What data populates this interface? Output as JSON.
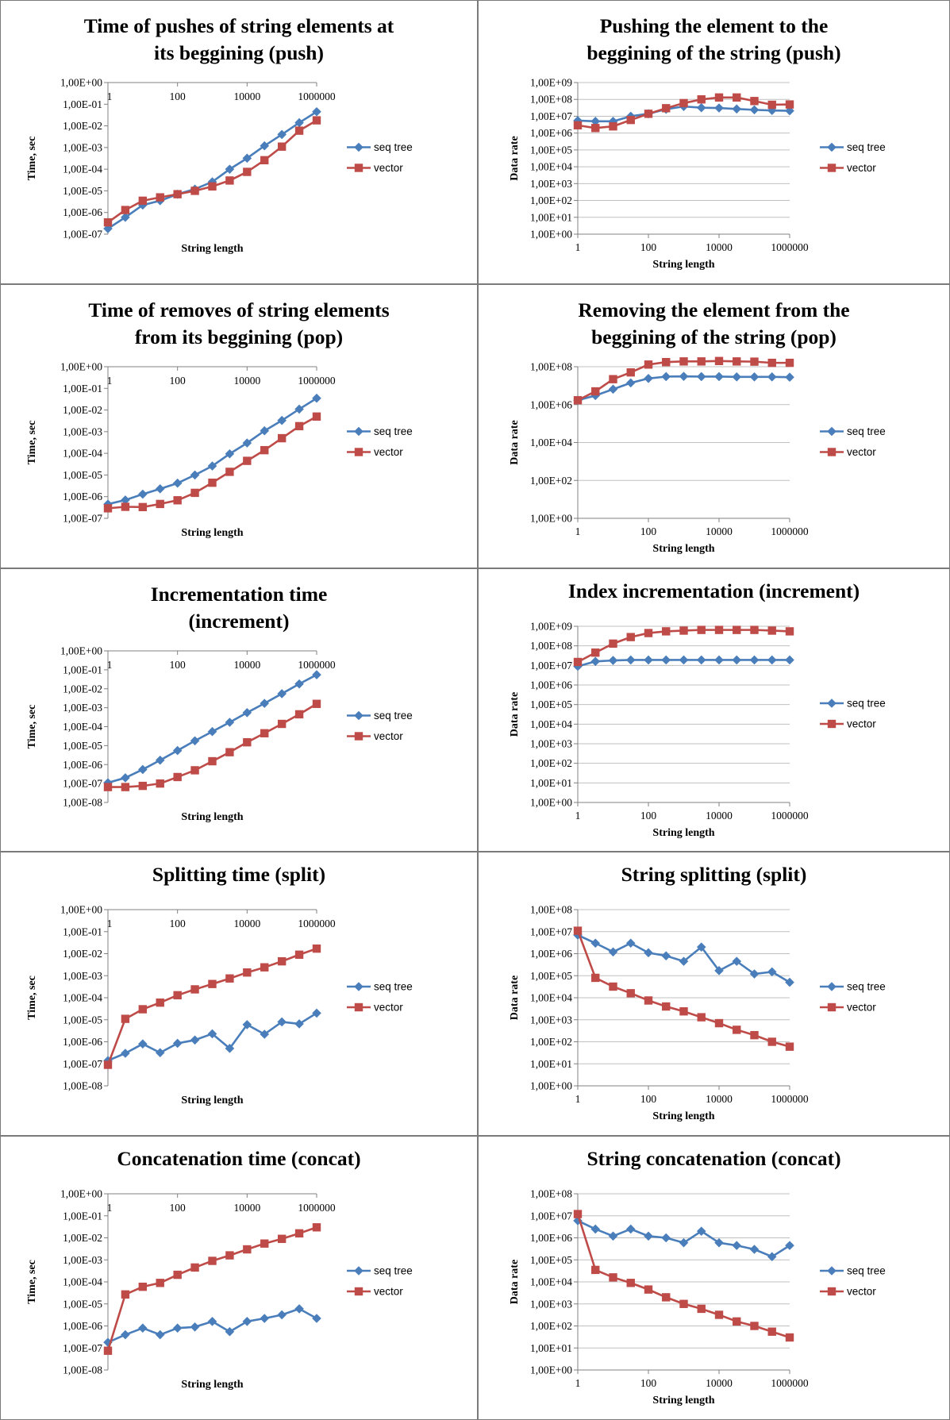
{
  "chart_data": [
    {
      "id": "push-time",
      "type": "line",
      "title": [
        "Time of pushes of string elements at",
        "its beggining (push)"
      ],
      "xlabel": "String length",
      "ylabel": "Time, sec",
      "x_scale": "log",
      "y_scale": "log",
      "x_range": [
        1,
        1000000
      ],
      "x_ticks": [
        "1",
        "100",
        "10000",
        "1000000"
      ],
      "x_tick_pos": "top",
      "y_range_exp": [
        -7,
        0
      ],
      "y_ticks": [
        "1,00E-07",
        "1,00E-06",
        "1,00E-05",
        "1,00E-04",
        "1,00E-03",
        "1,00E-02",
        "1,00E-01",
        "1,00E+00"
      ],
      "grid": false,
      "legend": "right",
      "x": [
        1,
        3.16,
        10,
        31.6,
        100,
        316,
        1000,
        3160,
        10000,
        31600,
        100000,
        316000,
        1000000
      ],
      "series": [
        {
          "name": "seq tree",
          "color": "#4a7ebb",
          "marker": "diamond",
          "values": [
            1.8e-07,
            6e-07,
            2.2e-06,
            3.5e-06,
            7e-06,
            1.2e-05,
            2.6e-05,
            0.0001,
            0.00032,
            0.0012,
            0.004,
            0.014,
            0.045
          ]
        },
        {
          "name": "vector",
          "color": "#be4b48",
          "marker": "square",
          "values": [
            3.5e-07,
            1.3e-06,
            3.5e-06,
            5e-06,
            7e-06,
            1e-05,
            1.6e-05,
            3e-05,
            7.5e-05,
            0.00026,
            0.0011,
            0.006,
            0.018
          ]
        }
      ]
    },
    {
      "id": "push-rate",
      "type": "line",
      "title": [
        "Pushing the element to the",
        "beggining of the string (push)"
      ],
      "xlabel": "String length",
      "ylabel": "Data rate",
      "x_scale": "log",
      "y_scale": "log",
      "x_range": [
        1,
        1000000
      ],
      "x_ticks": [
        "1",
        "100",
        "10000",
        "1000000"
      ],
      "x_tick_pos": "bottom",
      "y_range_exp": [
        0,
        9
      ],
      "y_ticks": [
        "1,00E+00",
        "1,00E+01",
        "1,00E+02",
        "1,00E+03",
        "1,00E+04",
        "1,00E+05",
        "1,00E+06",
        "1,00E+07",
        "1,00E+08",
        "1,00E+09"
      ],
      "grid": true,
      "legend": "right",
      "x": [
        1,
        3.16,
        10,
        31.6,
        100,
        316,
        1000,
        3160,
        10000,
        31600,
        100000,
        316000,
        1000000
      ],
      "series": [
        {
          "name": "seq tree",
          "color": "#4a7ebb",
          "marker": "diamond",
          "values": [
            5500000.0,
            5000000.0,
            5000000.0,
            10000000.0,
            14000000.0,
            26000000.0,
            38000000.0,
            32000000.0,
            31000000.0,
            27000000.0,
            24000000.0,
            22000000.0,
            21000000.0
          ]
        },
        {
          "name": "vector",
          "color": "#be4b48",
          "marker": "square",
          "values": [
            2900000.0,
            2000000.0,
            2500000.0,
            6000000.0,
            14000000.0,
            30000000.0,
            60000000.0,
            100000000.0,
            130000000.0,
            130000000.0,
            80000000.0,
            48000000.0,
            50000000.0
          ]
        }
      ]
    },
    {
      "id": "pop-time",
      "type": "line",
      "title": [
        "Time of removes of string elements",
        "from its beggining (pop)"
      ],
      "xlabel": "String length",
      "ylabel": "Time, sec",
      "x_scale": "log",
      "y_scale": "log",
      "x_range": [
        1,
        1000000
      ],
      "x_ticks": [
        "1",
        "100",
        "10000",
        "1000000"
      ],
      "x_tick_pos": "top",
      "y_range_exp": [
        -7,
        0
      ],
      "y_ticks": [
        "1,00E-07",
        "1,00E-06",
        "1,00E-05",
        "1,00E-04",
        "1,00E-03",
        "1,00E-02",
        "1,00E-01",
        "1,00E+00"
      ],
      "grid": false,
      "legend": "right",
      "x": [
        1,
        3.16,
        10,
        31.6,
        100,
        316,
        1000,
        3160,
        10000,
        31600,
        100000,
        316000,
        1000000
      ],
      "series": [
        {
          "name": "seq tree",
          "color": "#4a7ebb",
          "marker": "diamond",
          "values": [
            4.5e-07,
            7e-07,
            1.3e-06,
            2.3e-06,
            4.2e-06,
            1e-05,
            2.6e-05,
            9.5e-05,
            0.0003,
            0.0011,
            0.0033,
            0.011,
            0.035
          ]
        },
        {
          "name": "vector",
          "color": "#be4b48",
          "marker": "square",
          "values": [
            2.9e-07,
            3.4e-07,
            3.3e-07,
            4.6e-07,
            6.8e-07,
            1.5e-06,
            4.4e-06,
            1.4e-05,
            4.5e-05,
            0.00014,
            0.0005,
            0.0018,
            0.005
          ]
        }
      ]
    },
    {
      "id": "pop-rate",
      "type": "line",
      "title": [
        "Removing the element from the",
        "beggining of the string (pop)"
      ],
      "xlabel": "String length",
      "ylabel": "Data rate",
      "x_scale": "log",
      "y_scale": "log",
      "x_range": [
        1,
        1000000
      ],
      "x_ticks": [
        "1",
        "100",
        "10000",
        "1000000"
      ],
      "x_tick_pos": "bottom",
      "y_range_exp": [
        0,
        8
      ],
      "y_ticks": [
        "1,00E+00",
        "1,00E+02",
        "1,00E+04",
        "1,00E+06",
        "1,00E+08"
      ],
      "y_tick_step": 2,
      "grid": true,
      "legend": "right",
      "x": [
        1,
        3.16,
        10,
        31.6,
        100,
        316,
        1000,
        3160,
        10000,
        31600,
        100000,
        316000,
        1000000
      ],
      "series": [
        {
          "name": "seq tree",
          "color": "#4a7ebb",
          "marker": "diamond",
          "values": [
            1700000.0,
            3000000.0,
            6500000.0,
            14000000.0,
            24000000.0,
            30000000.0,
            31000000.0,
            30000000.0,
            30000000.0,
            29000000.0,
            29000000.0,
            29000000.0,
            28000000.0
          ]
        },
        {
          "name": "vector",
          "color": "#be4b48",
          "marker": "square",
          "values": [
            1700000.0,
            5000000.0,
            22000000.0,
            50000000.0,
            130000000.0,
            175000000.0,
            190000000.0,
            190000000.0,
            200000000.0,
            190000000.0,
            185000000.0,
            160000000.0,
            160000000.0
          ]
        }
      ]
    },
    {
      "id": "increment-time",
      "type": "line",
      "title": [
        "Incrementation time",
        "(increment)"
      ],
      "xlabel": "String length",
      "ylabel": "Time, sec",
      "x_scale": "log",
      "y_scale": "log",
      "x_range": [
        1,
        1000000
      ],
      "x_ticks": [
        "1",
        "100",
        "10000",
        "1000000"
      ],
      "x_tick_pos": "top",
      "y_range_exp": [
        -8,
        0
      ],
      "y_ticks": [
        "1,00E-08",
        "1,00E-07",
        "1,00E-06",
        "1,00E-05",
        "1,00E-04",
        "1,00E-03",
        "1,00E-02",
        "1,00E-01",
        "1,00E+00"
      ],
      "grid": false,
      "legend": "right",
      "x": [
        1,
        3.16,
        10,
        31.6,
        100,
        316,
        1000,
        3160,
        10000,
        31600,
        100000,
        316000,
        1000000
      ],
      "series": [
        {
          "name": "seq tree",
          "color": "#4a7ebb",
          "marker": "diamond",
          "values": [
            1.1e-07,
            2e-07,
            5.5e-07,
            1.7e-06,
            5.5e-06,
            1.8e-05,
            5.5e-05,
            0.00017,
            0.00055,
            0.0017,
            0.0055,
            0.018,
            0.055
          ]
        },
        {
          "name": "vector",
          "color": "#be4b48",
          "marker": "square",
          "values": [
            6.5e-08,
            6.5e-08,
            7.5e-08,
            1e-07,
            2.2e-07,
            5e-07,
            1.5e-06,
            4.5e-06,
            1.5e-05,
            4.5e-05,
            0.00014,
            0.00045,
            0.0016
          ]
        }
      ]
    },
    {
      "id": "increment-rate",
      "type": "line",
      "title": [
        "Index incrementation (increment)"
      ],
      "xlabel": "String length",
      "ylabel": "Data rate",
      "x_scale": "log",
      "y_scale": "log",
      "x_range": [
        1,
        1000000
      ],
      "x_ticks": [
        "1",
        "100",
        "10000",
        "1000000"
      ],
      "x_tick_pos": "bottom",
      "y_range_exp": [
        0,
        9
      ],
      "y_ticks": [
        "1,00E+00",
        "1,00E+01",
        "1,00E+02",
        "1,00E+03",
        "1,00E+04",
        "1,00E+05",
        "1,00E+06",
        "1,00E+07",
        "1,00E+08",
        "1,00E+09"
      ],
      "grid": true,
      "legend": "right",
      "x": [
        1,
        3.16,
        10,
        31.6,
        100,
        316,
        1000,
        3160,
        10000,
        31600,
        100000,
        316000,
        1000000
      ],
      "series": [
        {
          "name": "seq tree",
          "color": "#4a7ebb",
          "marker": "diamond",
          "values": [
            9000000.0,
            16000000.0,
            18000000.0,
            19000000.0,
            19000000.0,
            19000000.0,
            19000000.0,
            19000000.0,
            19000000.0,
            19000000.0,
            19000000.0,
            19000000.0,
            19000000.0
          ]
        },
        {
          "name": "vector",
          "color": "#be4b48",
          "marker": "square",
          "values": [
            15000000.0,
            45000000.0,
            130000000.0,
            280000000.0,
            450000000.0,
            550000000.0,
            600000000.0,
            650000000.0,
            650000000.0,
            650000000.0,
            650000000.0,
            600000000.0,
            550000000.0
          ]
        }
      ]
    },
    {
      "id": "split-time",
      "type": "line",
      "title": [
        "Splitting time (split)"
      ],
      "xlabel": "String length",
      "ylabel": "Time, sec",
      "x_scale": "log",
      "y_scale": "log",
      "x_range": [
        1,
        1000000
      ],
      "x_ticks": [
        "1",
        "100",
        "10000",
        "1000000"
      ],
      "x_tick_pos": "top",
      "y_range_exp": [
        -8,
        0
      ],
      "y_ticks": [
        "1,00E-08",
        "1,00E-07",
        "1,00E-06",
        "1,00E-05",
        "1,00E-04",
        "1,00E-03",
        "1,00E-02",
        "1,00E-01",
        "1,00E+00"
      ],
      "grid": false,
      "legend": "right",
      "x": [
        1,
        3.16,
        10,
        31.6,
        100,
        316,
        1000,
        3160,
        10000,
        31600,
        100000,
        316000,
        1000000
      ],
      "series": [
        {
          "name": "seq tree",
          "color": "#4a7ebb",
          "marker": "diamond",
          "values": [
            1.4e-07,
            3e-07,
            8e-07,
            3.2e-07,
            8.5e-07,
            1.2e-06,
            2.3e-06,
            5e-07,
            6e-06,
            2.2e-06,
            8e-06,
            6.5e-06,
            2e-05
          ]
        },
        {
          "name": "vector",
          "color": "#be4b48",
          "marker": "square",
          "values": [
            9e-08,
            1.1e-05,
            3e-05,
            6e-05,
            0.00013,
            0.00024,
            0.00042,
            0.00075,
            0.0014,
            0.0024,
            0.0045,
            0.009,
            0.017
          ]
        }
      ]
    },
    {
      "id": "split-rate",
      "type": "line",
      "title": [
        "String splitting (split)"
      ],
      "xlabel": "String length",
      "ylabel": "Data rate",
      "x_scale": "log",
      "y_scale": "log",
      "x_range": [
        1,
        1000000
      ],
      "x_ticks": [
        "1",
        "100",
        "10000",
        "1000000"
      ],
      "x_tick_pos": "bottom",
      "y_range_exp": [
        0,
        8
      ],
      "y_ticks": [
        "1,00E+00",
        "1,00E+01",
        "1,00E+02",
        "1,00E+03",
        "1,00E+04",
        "1,00E+05",
        "1,00E+06",
        "1,00E+07",
        "1,00E+08"
      ],
      "grid": true,
      "legend": "right",
      "x": [
        1,
        3.16,
        10,
        31.6,
        100,
        316,
        1000,
        3160,
        10000,
        31600,
        100000,
        316000,
        1000000
      ],
      "series": [
        {
          "name": "seq tree",
          "color": "#4a7ebb",
          "marker": "diamond",
          "values": [
            7000000.0,
            3000000.0,
            1200000.0,
            3000000.0,
            1100000.0,
            800000.0,
            450000.0,
            2000000.0,
            170000.0,
            450000.0,
            120000.0,
            150000.0,
            50000.0
          ]
        },
        {
          "name": "vector",
          "color": "#be4b48",
          "marker": "square",
          "values": [
            11000000.0,
            80000.0,
            32000.0,
            16000.0,
            7500.0,
            4000.0,
            2400.0,
            1300.0,
            700.0,
            350.0,
            200.0,
            100.0,
            60.0
          ]
        }
      ]
    },
    {
      "id": "concat-time",
      "type": "line",
      "title": [
        "Concatenation time (concat)"
      ],
      "xlabel": "String length",
      "ylabel": "Time, sec",
      "x_scale": "log",
      "y_scale": "log",
      "x_range": [
        1,
        1000000
      ],
      "x_ticks": [
        "1",
        "100",
        "10000",
        "1000000"
      ],
      "x_tick_pos": "top",
      "y_range_exp": [
        -8,
        0
      ],
      "y_ticks": [
        "1,00E-08",
        "1,00E-07",
        "1,00E-06",
        "1,00E-05",
        "1,00E-04",
        "1,00E-03",
        "1,00E-02",
        "1,00E-01",
        "1,00E+00"
      ],
      "grid": false,
      "legend": "right",
      "x": [
        1,
        3.16,
        10,
        31.6,
        100,
        316,
        1000,
        3160,
        10000,
        31600,
        100000,
        316000,
        1000000
      ],
      "series": [
        {
          "name": "seq tree",
          "color": "#4a7ebb",
          "marker": "diamond",
          "values": [
            1.8e-07,
            4e-07,
            8e-07,
            4e-07,
            8e-07,
            9e-07,
            1.6e-06,
            5.5e-07,
            1.6e-06,
            2.2e-06,
            3.2e-06,
            6e-06,
            2.2e-06
          ]
        },
        {
          "name": "vector",
          "color": "#be4b48",
          "marker": "square",
          "values": [
            7.5e-08,
            2.7e-05,
            6e-05,
            9e-05,
            0.00021,
            0.00045,
            0.0009,
            0.0016,
            0.003,
            0.0055,
            0.009,
            0.016,
            0.03
          ]
        }
      ]
    },
    {
      "id": "concat-rate",
      "type": "line",
      "title": [
        "String concatenation (concat)"
      ],
      "xlabel": "String length",
      "ylabel": "Data rate",
      "x_scale": "log",
      "y_scale": "log",
      "x_range": [
        1,
        1000000
      ],
      "x_ticks": [
        "1",
        "100",
        "10000",
        "1000000"
      ],
      "x_tick_pos": "bottom",
      "y_range_exp": [
        0,
        8
      ],
      "y_ticks": [
        "1,00E+00",
        "1,00E+01",
        "1,00E+02",
        "1,00E+03",
        "1,00E+04",
        "1,00E+05",
        "1,00E+06",
        "1,00E+07",
        "1,00E+08"
      ],
      "grid": true,
      "legend": "right",
      "x": [
        1,
        3.16,
        10,
        31.6,
        100,
        316,
        1000,
        3160,
        10000,
        31600,
        100000,
        316000,
        1000000
      ],
      "series": [
        {
          "name": "seq tree",
          "color": "#4a7ebb",
          "marker": "diamond",
          "values": [
            6000000.0,
            2500000.0,
            1200000.0,
            2500000.0,
            1200000.0,
            1000000.0,
            600000.0,
            2000000.0,
            600000.0,
            450000.0,
            300000.0,
            140000.0,
            450000.0
          ]
        },
        {
          "name": "vector",
          "color": "#be4b48",
          "marker": "square",
          "values": [
            12000000.0,
            35000.0,
            16000.0,
            9000.0,
            4500.0,
            2000.0,
            1000.0,
            600.0,
            320.0,
            160.0,
            100.0,
            55.0,
            30.0
          ]
        }
      ]
    }
  ]
}
